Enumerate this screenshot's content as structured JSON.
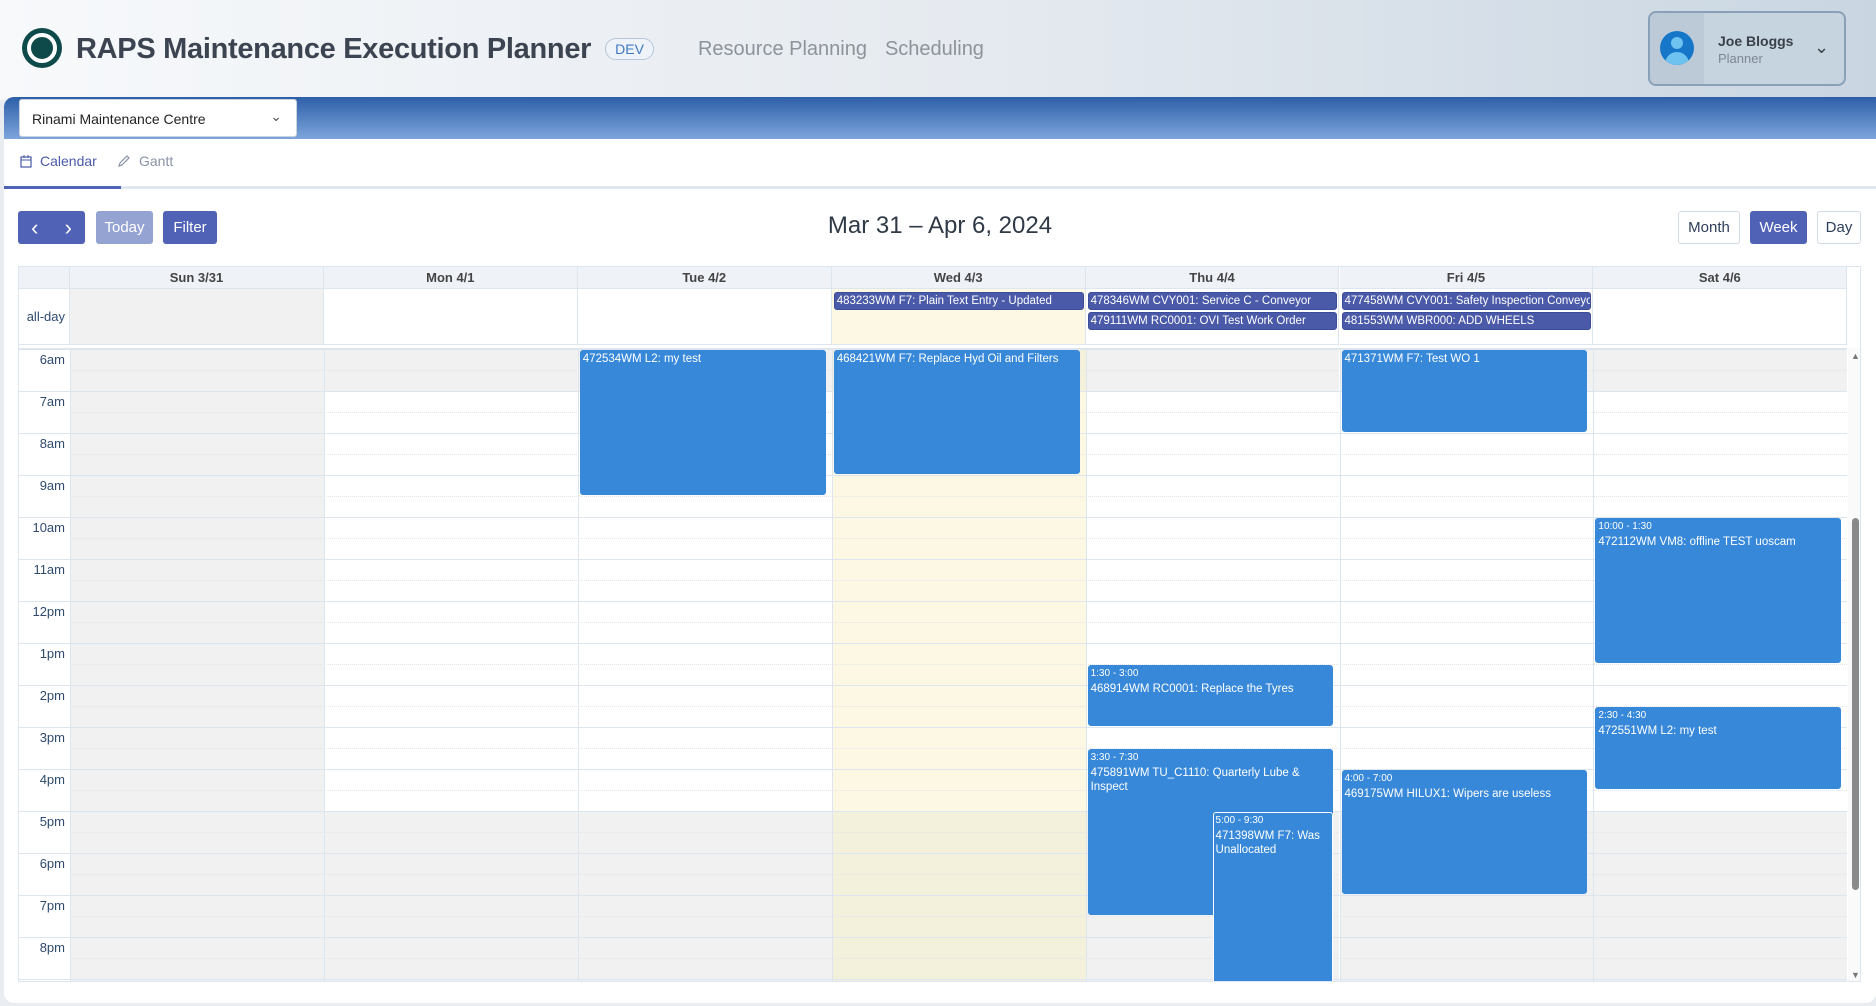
{
  "app": {
    "title": "RAPS Maintenance Execution Planner",
    "env_badge": "DEV",
    "nav": [
      "Resource Planning",
      "Scheduling"
    ]
  },
  "user": {
    "name": "Joe Bloggs",
    "role": "Planner"
  },
  "site_select": {
    "value": "Rinami Maintenance Centre"
  },
  "tabs": [
    {
      "label": "Calendar",
      "icon": "calendar-icon",
      "active": true
    },
    {
      "label": "Gantt",
      "icon": "pencil-icon",
      "active": false
    }
  ],
  "toolbar": {
    "prev": "‹",
    "next": "›",
    "today": "Today",
    "filter": "Filter",
    "title": "Mar 31 – Apr 6, 2024",
    "views": [
      "Month",
      "Week",
      "Day"
    ],
    "active_view": "Week"
  },
  "calendar": {
    "days": [
      "Sun 3/31",
      "Mon 4/1",
      "Tue 4/2",
      "Wed 4/3",
      "Thu 4/4",
      "Fri 4/5",
      "Sat 4/6"
    ],
    "today_index": 3,
    "allday_label": "all-day",
    "hours": [
      "6am",
      "7am",
      "8am",
      "9am",
      "10am",
      "11am",
      "12pm",
      "1pm",
      "2pm",
      "3pm",
      "4pm",
      "5pm",
      "6pm",
      "7pm",
      "8pm"
    ],
    "colors": {
      "timed_event": "#3788d8",
      "allday_event": "#4a5aa8",
      "today": "#fcf8e3",
      "non_business": "#f1f1f1",
      "accent": "#4f62b5"
    },
    "allday_events": [
      {
        "day": 3,
        "title": "483233WM F7: Plain Text Entry - Updated"
      },
      {
        "day": 4,
        "title": "478346WM CVY001: Service C - Conveyor"
      },
      {
        "day": 4,
        "title": "479111WM RC0001: OVI Test Work Order"
      },
      {
        "day": 5,
        "title": "477458WM CVY001: Safety Inspection Conveyor"
      },
      {
        "day": 5,
        "title": "481553WM WBR000: ADD WHEELS"
      }
    ],
    "events": [
      {
        "day": 2,
        "start": 6,
        "end": 9.5,
        "time": "",
        "title": "472534WM L2: my test"
      },
      {
        "day": 3,
        "start": 6,
        "end": 9,
        "time": "",
        "title": "468421WM F7: Replace Hyd Oil and Filters"
      },
      {
        "day": 5,
        "start": 6,
        "end": 8,
        "time": "",
        "title": "471371WM F7: Test WO 1"
      },
      {
        "day": 6,
        "start": 10,
        "end": 13.5,
        "time": "10:00 - 1:30",
        "title": "472112WM VM8: offline TEST uoscam"
      },
      {
        "day": 4,
        "start": 13.5,
        "end": 15,
        "time": "1:30 - 3:00",
        "title": "468914WM RC0001: Replace the Tyres"
      },
      {
        "day": 6,
        "start": 14.5,
        "end": 16.5,
        "time": "2:30 - 4:30",
        "title": "472551WM L2: my test"
      },
      {
        "day": 4,
        "start": 15.5,
        "end": 19.5,
        "time": "3:30 - 7:30",
        "title": "475891WM TU_C1110: Quarterly Lube & Inspect"
      },
      {
        "day": 5,
        "start": 16,
        "end": 19,
        "time": "4:00 - 7:00",
        "title": "469175WM HILUX1: Wipers are useless"
      },
      {
        "day": 4,
        "start": 17,
        "end": 21.5,
        "time": "5:00 - 9:30",
        "title": "471398WM F7: Was Unallocated"
      }
    ]
  }
}
